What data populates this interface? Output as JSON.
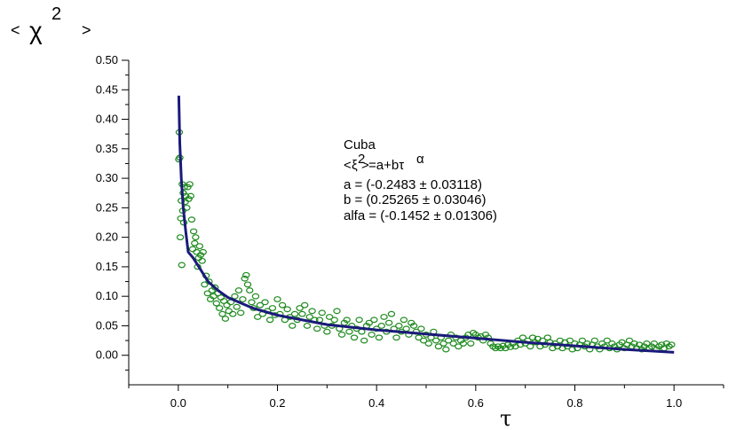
{
  "chart_data": {
    "type": "scatter",
    "title": "",
    "ylabel_parts": {
      "open": "<",
      "chi": "χ",
      "exp": "2",
      "close": ">"
    },
    "xlabel": "τ",
    "xlim": [
      -0.1,
      1.1
    ],
    "ylim": [
      -0.05,
      0.5
    ],
    "x_ticks": [
      0.0,
      0.2,
      0.4,
      0.6,
      0.8,
      1.0
    ],
    "x_tick_labels": [
      "0.0",
      "0.2",
      "0.4",
      "0.6",
      "0.8",
      "1.0"
    ],
    "y_ticks": [
      0.0,
      0.05,
      0.1,
      0.15,
      0.2,
      0.25,
      0.3,
      0.35,
      0.4,
      0.45,
      0.5
    ],
    "y_tick_labels": [
      "0.00",
      "0.05",
      "0.10",
      "0.15",
      "0.20",
      "0.25",
      "0.30",
      "0.35",
      "0.40",
      "0.45",
      "0.50"
    ],
    "grid": false,
    "annotation": {
      "title": "Cuba",
      "equation": {
        "lt": "<",
        "xi": "ξ",
        "exp": "2",
        "gt": ">",
        "rest": "=a+bτ",
        "alpha": "α"
      },
      "lines": [
        "a = (-0.2483 ± 0.03118)",
        "b = (0.25265 ± 0.03046)",
        "alfa = (-0.1452 ± 0.01306)"
      ]
    },
    "fit": {
      "a": -0.2483,
      "b": 0.25265,
      "alfa": -0.1452,
      "x": [
        0.001,
        0.003,
        0.006,
        0.01,
        0.015,
        0.02,
        0.03,
        0.045,
        0.06,
        0.08,
        0.1,
        0.15,
        0.2,
        0.3,
        0.4,
        0.5,
        0.6,
        0.7,
        0.8,
        0.9,
        1.0
      ],
      "y": [
        0.44,
        0.36,
        0.3,
        0.25,
        0.21,
        0.175,
        0.165,
        0.145,
        0.125,
        0.11,
        0.098,
        0.08,
        0.068,
        0.052,
        0.043,
        0.036,
        0.029,
        0.022,
        0.016,
        0.01,
        0.005
      ]
    },
    "points": [
      [
        0.001,
        0.332
      ],
      [
        0.002,
        0.378
      ],
      [
        0.003,
        0.335
      ],
      [
        0.004,
        0.2
      ],
      [
        0.005,
        0.232
      ],
      [
        0.006,
        0.262
      ],
      [
        0.007,
        0.153
      ],
      [
        0.008,
        0.29
      ],
      [
        0.009,
        0.245
      ],
      [
        0.01,
        0.275
      ],
      [
        0.011,
        0.225
      ],
      [
        0.012,
        0.285
      ],
      [
        0.014,
        0.26
      ],
      [
        0.015,
        0.27
      ],
      [
        0.017,
        0.25
      ],
      [
        0.019,
        0.285
      ],
      [
        0.021,
        0.265
      ],
      [
        0.023,
        0.29
      ],
      [
        0.025,
        0.27
      ],
      [
        0.027,
        0.23
      ],
      [
        0.029,
        0.18
      ],
      [
        0.031,
        0.21
      ],
      [
        0.033,
        0.19
      ],
      [
        0.035,
        0.2
      ],
      [
        0.037,
        0.175
      ],
      [
        0.039,
        0.15
      ],
      [
        0.041,
        0.165
      ],
      [
        0.043,
        0.185
      ],
      [
        0.045,
        0.17
      ],
      [
        0.048,
        0.16
      ],
      [
        0.05,
        0.175
      ],
      [
        0.053,
        0.12
      ],
      [
        0.056,
        0.135
      ],
      [
        0.059,
        0.105
      ],
      [
        0.062,
        0.125
      ],
      [
        0.065,
        0.095
      ],
      [
        0.068,
        0.11
      ],
      [
        0.071,
        0.1
      ],
      [
        0.074,
        0.115
      ],
      [
        0.077,
        0.088
      ],
      [
        0.08,
        0.105
      ],
      [
        0.083,
        0.08
      ],
      [
        0.086,
        0.098
      ],
      [
        0.089,
        0.07
      ],
      [
        0.092,
        0.092
      ],
      [
        0.095,
        0.062
      ],
      [
        0.098,
        0.085
      ],
      [
        0.102,
        0.075
      ],
      [
        0.106,
        0.09
      ],
      [
        0.11,
        0.07
      ],
      [
        0.114,
        0.1
      ],
      [
        0.118,
        0.082
      ],
      [
        0.122,
        0.11
      ],
      [
        0.126,
        0.072
      ],
      [
        0.13,
        0.095
      ],
      [
        0.134,
        0.13
      ],
      [
        0.137,
        0.136
      ],
      [
        0.14,
        0.12
      ],
      [
        0.144,
        0.11
      ],
      [
        0.148,
        0.09
      ],
      [
        0.152,
        0.08
      ],
      [
        0.156,
        0.1
      ],
      [
        0.16,
        0.065
      ],
      [
        0.165,
        0.085
      ],
      [
        0.17,
        0.07
      ],
      [
        0.175,
        0.09
      ],
      [
        0.18,
        0.075
      ],
      [
        0.185,
        0.06
      ],
      [
        0.19,
        0.08
      ],
      [
        0.195,
        0.068
      ],
      [
        0.2,
        0.095
      ],
      [
        0.205,
        0.07
      ],
      [
        0.21,
        0.085
      ],
      [
        0.215,
        0.06
      ],
      [
        0.22,
        0.078
      ],
      [
        0.225,
        0.065
      ],
      [
        0.23,
        0.05
      ],
      [
        0.235,
        0.07
      ],
      [
        0.24,
        0.06
      ],
      [
        0.245,
        0.08
      ],
      [
        0.25,
        0.07
      ],
      [
        0.255,
        0.085
      ],
      [
        0.26,
        0.05
      ],
      [
        0.265,
        0.065
      ],
      [
        0.27,
        0.075
      ],
      [
        0.275,
        0.06
      ],
      [
        0.28,
        0.045
      ],
      [
        0.285,
        0.06
      ],
      [
        0.29,
        0.072
      ],
      [
        0.295,
        0.05
      ],
      [
        0.3,
        0.04
      ],
      [
        0.305,
        0.065
      ],
      [
        0.31,
        0.05
      ],
      [
        0.315,
        0.06
      ],
      [
        0.32,
        0.075
      ],
      [
        0.325,
        0.045
      ],
      [
        0.33,
        0.035
      ],
      [
        0.335,
        0.055
      ],
      [
        0.34,
        0.06
      ],
      [
        0.345,
        0.04
      ],
      [
        0.35,
        0.05
      ],
      [
        0.355,
        0.03
      ],
      [
        0.36,
        0.045
      ],
      [
        0.365,
        0.06
      ],
      [
        0.37,
        0.04
      ],
      [
        0.375,
        0.025
      ],
      [
        0.38,
        0.05
      ],
      [
        0.385,
        0.055
      ],
      [
        0.39,
        0.035
      ],
      [
        0.395,
        0.06
      ],
      [
        0.4,
        0.045
      ],
      [
        0.405,
        0.03
      ],
      [
        0.41,
        0.05
      ],
      [
        0.415,
        0.065
      ],
      [
        0.42,
        0.04
      ],
      [
        0.425,
        0.055
      ],
      [
        0.43,
        0.07
      ],
      [
        0.435,
        0.045
      ],
      [
        0.44,
        0.03
      ],
      [
        0.445,
        0.05
      ],
      [
        0.45,
        0.04
      ],
      [
        0.455,
        0.06
      ],
      [
        0.46,
        0.045
      ],
      [
        0.465,
        0.035
      ],
      [
        0.47,
        0.055
      ],
      [
        0.475,
        0.05
      ],
      [
        0.48,
        0.04
      ],
      [
        0.485,
        0.03
      ],
      [
        0.49,
        0.045
      ],
      [
        0.495,
        0.025
      ],
      [
        0.5,
        0.035
      ],
      [
        0.505,
        0.02
      ],
      [
        0.51,
        0.03
      ],
      [
        0.515,
        0.04
      ],
      [
        0.52,
        0.025
      ],
      [
        0.525,
        0.015
      ],
      [
        0.53,
        0.03
      ],
      [
        0.535,
        0.02
      ],
      [
        0.54,
        0.01
      ],
      [
        0.545,
        0.025
      ],
      [
        0.55,
        0.035
      ],
      [
        0.555,
        0.02
      ],
      [
        0.56,
        0.03
      ],
      [
        0.565,
        0.015
      ],
      [
        0.57,
        0.025
      ],
      [
        0.575,
        0.02
      ],
      [
        0.58,
        0.03
      ],
      [
        0.585,
        0.035
      ],
      [
        0.59,
        0.02
      ],
      [
        0.595,
        0.038
      ],
      [
        0.6,
        0.035
      ],
      [
        0.605,
        0.03
      ],
      [
        0.61,
        0.032
      ],
      [
        0.615,
        0.025
      ],
      [
        0.62,
        0.035
      ],
      [
        0.625,
        0.03
      ],
      [
        0.63,
        0.02
      ],
      [
        0.635,
        0.015
      ],
      [
        0.64,
        0.012
      ],
      [
        0.645,
        0.015
      ],
      [
        0.65,
        0.012
      ],
      [
        0.655,
        0.016
      ],
      [
        0.66,
        0.012
      ],
      [
        0.665,
        0.018
      ],
      [
        0.67,
        0.014
      ],
      [
        0.675,
        0.02
      ],
      [
        0.68,
        0.015
      ],
      [
        0.685,
        0.025
      ],
      [
        0.69,
        0.018
      ],
      [
        0.695,
        0.03
      ],
      [
        0.7,
        0.02
      ],
      [
        0.705,
        0.025
      ],
      [
        0.71,
        0.015
      ],
      [
        0.715,
        0.03
      ],
      [
        0.72,
        0.022
      ],
      [
        0.725,
        0.028
      ],
      [
        0.73,
        0.015
      ],
      [
        0.735,
        0.025
      ],
      [
        0.74,
        0.018
      ],
      [
        0.745,
        0.03
      ],
      [
        0.75,
        0.022
      ],
      [
        0.755,
        0.012
      ],
      [
        0.76,
        0.02
      ],
      [
        0.765,
        0.015
      ],
      [
        0.77,
        0.025
      ],
      [
        0.775,
        0.012
      ],
      [
        0.78,
        0.022
      ],
      [
        0.785,
        0.015
      ],
      [
        0.79,
        0.025
      ],
      [
        0.795,
        0.01
      ],
      [
        0.8,
        0.02
      ],
      [
        0.805,
        0.012
      ],
      [
        0.81,
        0.018
      ],
      [
        0.815,
        0.025
      ],
      [
        0.82,
        0.015
      ],
      [
        0.825,
        0.02
      ],
      [
        0.83,
        0.01
      ],
      [
        0.835,
        0.018
      ],
      [
        0.84,
        0.025
      ],
      [
        0.845,
        0.015
      ],
      [
        0.85,
        0.01
      ],
      [
        0.855,
        0.02
      ],
      [
        0.86,
        0.015
      ],
      [
        0.865,
        0.025
      ],
      [
        0.87,
        0.012
      ],
      [
        0.875,
        0.02
      ],
      [
        0.88,
        0.015
      ],
      [
        0.885,
        0.01
      ],
      [
        0.89,
        0.018
      ],
      [
        0.895,
        0.022
      ],
      [
        0.9,
        0.012
      ],
      [
        0.905,
        0.018
      ],
      [
        0.91,
        0.025
      ],
      [
        0.915,
        0.015
      ],
      [
        0.92,
        0.02
      ],
      [
        0.925,
        0.012
      ],
      [
        0.93,
        0.018
      ],
      [
        0.935,
        0.01
      ],
      [
        0.94,
        0.015
      ],
      [
        0.945,
        0.02
      ],
      [
        0.95,
        0.012
      ],
      [
        0.955,
        0.015
      ],
      [
        0.96,
        0.02
      ],
      [
        0.965,
        0.01
      ],
      [
        0.97,
        0.015
      ],
      [
        0.975,
        0.018
      ],
      [
        0.98,
        0.012
      ],
      [
        0.985,
        0.02
      ],
      [
        0.99,
        0.015
      ],
      [
        0.995,
        0.018
      ]
    ]
  }
}
